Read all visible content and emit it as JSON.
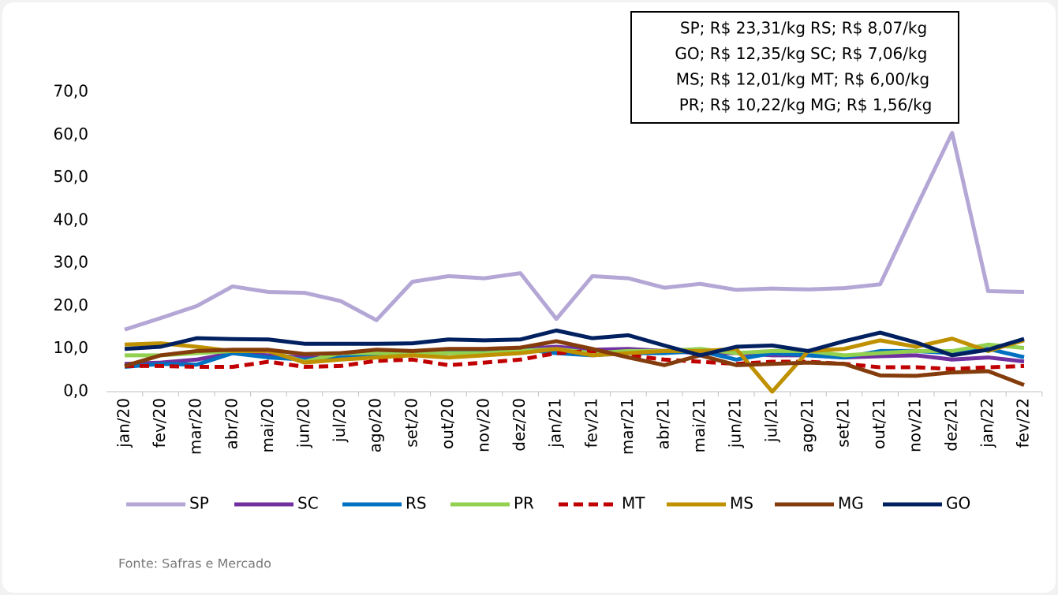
{
  "chart_data": {
    "type": "line",
    "categories": [
      "jan/20",
      "fev/20",
      "mar/20",
      "abr/20",
      "mai/20",
      "jun/20",
      "jul/20",
      "ago/20",
      "set/20",
      "out/20",
      "nov/20",
      "dez/20",
      "jan/21",
      "fev/21",
      "mar/21",
      "abr/21",
      "mai/21",
      "jun/21",
      "jul/21",
      "ago/21",
      "set/21",
      "out/21",
      "nov/21",
      "dez/21",
      "jan/22",
      "fev/22"
    ],
    "series": [
      {
        "name": "SP",
        "color": "#b4a7d6",
        "values": [
          14.5,
          17.2,
          20,
          24.6,
          23.3,
          23.1,
          21.2,
          16.7,
          25.7,
          27,
          26.5,
          27.7,
          17,
          27,
          26.5,
          24.3,
          25.2,
          23.8,
          24.1,
          23.9,
          24.2,
          25.1,
          43,
          60.5,
          23.5,
          23.31
        ]
      },
      {
        "name": "SC",
        "color": "#7030a0",
        "values": [
          6.5,
          6.8,
          7.5,
          9,
          8.5,
          8,
          7.8,
          8.5,
          8.8,
          9,
          9.5,
          10,
          10.5,
          9.8,
          10,
          9.5,
          9,
          9,
          8.5,
          8.5,
          8,
          8.3,
          8.5,
          7.5,
          8,
          7.06
        ]
      },
      {
        "name": "RS",
        "color": "#0070c0",
        "values": [
          5.8,
          6.5,
          6.3,
          9,
          8,
          7.5,
          8,
          8.5,
          9,
          9.2,
          9.5,
          10,
          9,
          8.5,
          9,
          9,
          9.5,
          7.5,
          9,
          8.5,
          8,
          9.5,
          9.5,
          9,
          10,
          8.07
        ]
      },
      {
        "name": "PR",
        "color": "#92d050",
        "values": [
          8.5,
          8.5,
          9,
          9.5,
          9.5,
          7,
          9,
          9,
          9,
          9,
          9,
          9.5,
          10,
          9,
          9.5,
          9.5,
          10,
          9,
          9.5,
          9.5,
          8.5,
          9,
          9.5,
          9.5,
          11,
          10.22
        ]
      },
      {
        "name": "MT",
        "color": "#c00000",
        "dashed": true,
        "values": [
          6,
          6,
          5.8,
          5.8,
          7,
          5.8,
          6,
          7.2,
          7.5,
          6.2,
          6.8,
          7.5,
          9,
          9.5,
          8.5,
          7.5,
          7,
          6.5,
          7,
          7,
          6.5,
          5.7,
          5.7,
          5.3,
          5.7,
          6
        ]
      },
      {
        "name": "MS",
        "color": "#bf9000",
        "values": [
          11,
          11.3,
          10.5,
          9.5,
          9.5,
          6.8,
          7.5,
          8,
          8.5,
          8,
          8.5,
          9,
          10,
          8.5,
          9,
          9.5,
          9.5,
          10,
          0,
          9.5,
          10,
          12,
          10.5,
          12.4,
          9.5,
          12.01
        ]
      },
      {
        "name": "MG",
        "color": "#843c0c",
        "values": [
          6,
          8.5,
          9.5,
          9.8,
          9.8,
          8.8,
          9,
          9.8,
          9.5,
          10,
          10,
          10.3,
          11.8,
          10,
          8,
          6.2,
          8.5,
          6.2,
          6.5,
          6.8,
          6.5,
          3.8,
          3.7,
          4.5,
          4.8,
          1.56
        ]
      },
      {
        "name": "GO",
        "color": "#002060",
        "values": [
          10,
          10.5,
          12.5,
          12.3,
          12.2,
          11.2,
          11.2,
          11.2,
          11.3,
          12.2,
          12,
          12.2,
          14.3,
          12.5,
          13.2,
          10.8,
          8.5,
          10.5,
          10.8,
          9.5,
          11.8,
          13.8,
          11.5,
          8.5,
          9.8,
          12.35
        ]
      }
    ],
    "ylim": [
      0,
      70
    ],
    "yticks": [
      {
        "value": 0,
        "label": "0,0"
      },
      {
        "value": 10,
        "label": "10,0"
      },
      {
        "value": 20,
        "label": "20,0"
      },
      {
        "value": 30,
        "label": "30,0"
      },
      {
        "value": 40,
        "label": "40,0"
      },
      {
        "value": 50,
        "label": "50,0"
      },
      {
        "value": 60,
        "label": "60,0"
      },
      {
        "value": 70,
        "label": "70,0"
      }
    ],
    "annotations": [
      "SP; R$ 23,31/kg",
      "RS; R$ 8,07/kg",
      "GO; R$ 12,35/kg",
      "SC; R$ 7,06/kg",
      "MS; R$ 12,01/kg",
      "MT; R$ 6,00/kg",
      "PR; R$ 10,22/kg",
      "MG; R$ 1,56/kg"
    ],
    "source": "Fonte: Safras e Mercado",
    "grid": false
  }
}
